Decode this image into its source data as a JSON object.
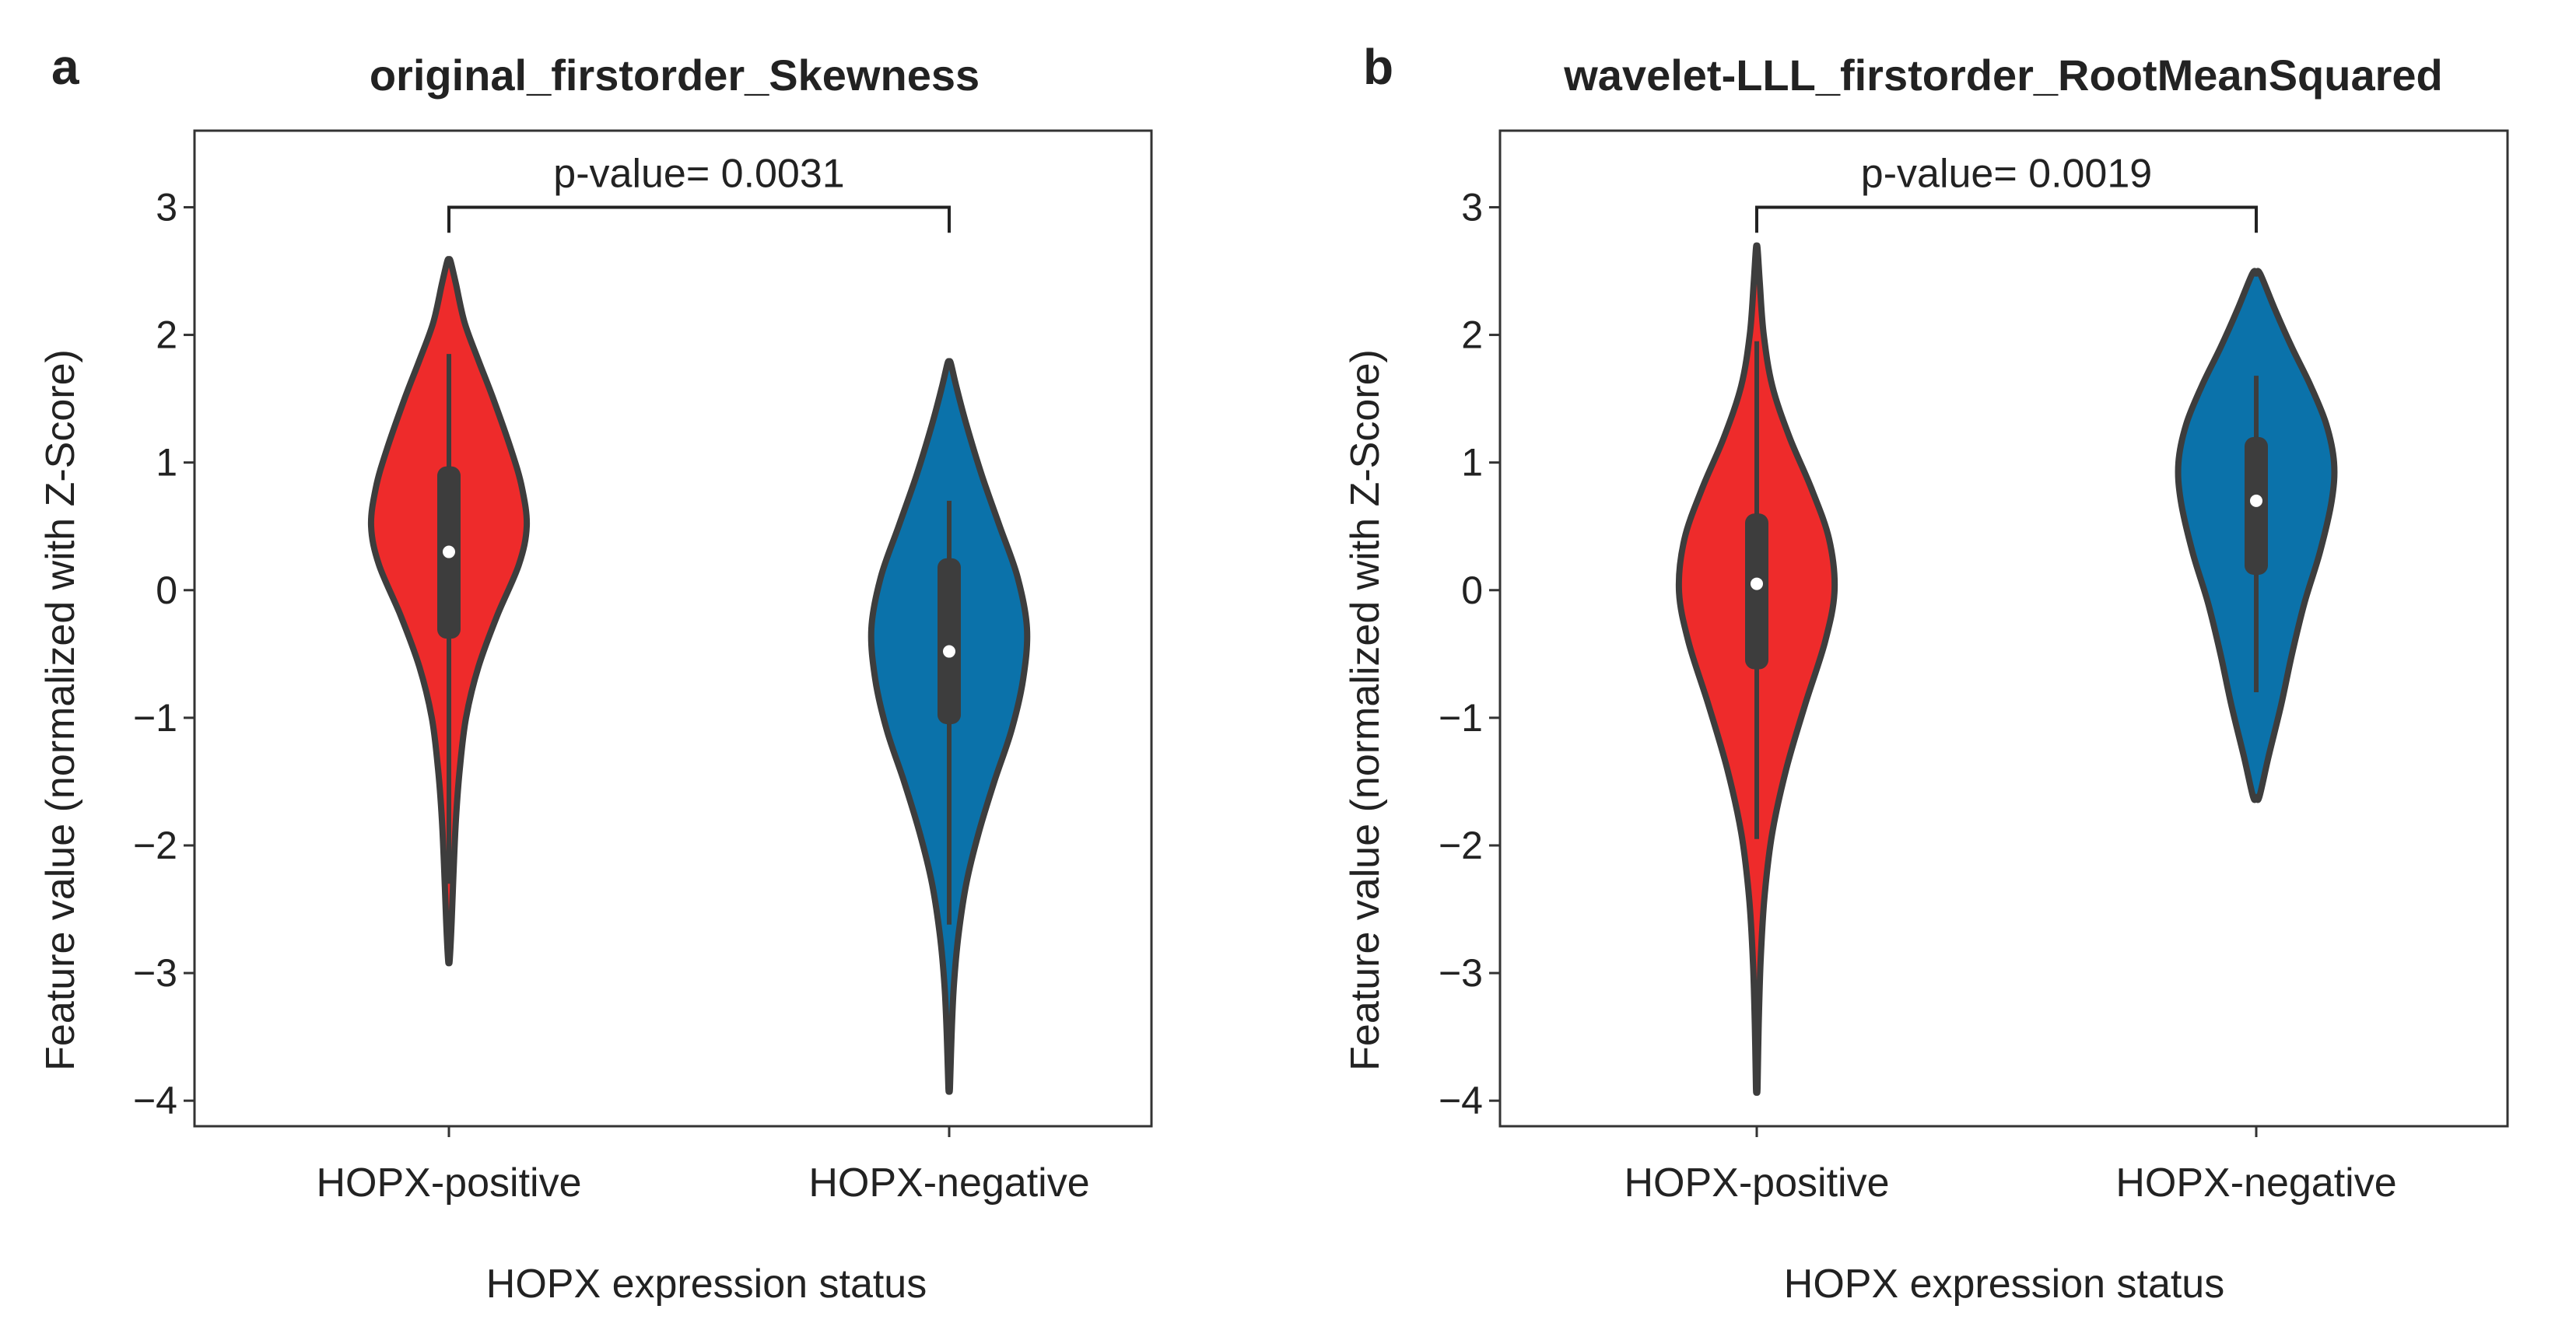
{
  "chart_data": [
    {
      "type": "violin",
      "panel": "a",
      "title": "original_firstorder_Skewness",
      "xlabel": "HOPX expression status",
      "ylabel": "Feature value (normalized with Z-Score)",
      "ylim": [
        -4.2,
        3.6
      ],
      "yticks": [
        3,
        2,
        1,
        0,
        -1,
        -2,
        -3,
        -4
      ],
      "ytick_labels": [
        "3",
        "2",
        "1",
        "0",
        "−1",
        "−2",
        "−3",
        "−4"
      ],
      "categories": [
        "HOPX-positive",
        "HOPX-negative"
      ],
      "annotation": {
        "text": "p-value= 0.0031",
        "bracket_y": 3.0,
        "bracket_drop": 0.2
      },
      "violins": [
        {
          "name": "HOPX-positive",
          "color": "#ee2b2b",
          "min": -2.9,
          "max": 2.58,
          "median": 0.3,
          "q1": -0.38,
          "q3": 0.97,
          "whisker_low": -2.3,
          "whisker_high": 1.85,
          "profile": [
            [
              -2.9,
              0.01
            ],
            [
              -2.6,
              0.035
            ],
            [
              -2.2,
              0.06
            ],
            [
              -1.8,
              0.09
            ],
            [
              -1.4,
              0.14
            ],
            [
              -1.0,
              0.22
            ],
            [
              -0.6,
              0.38
            ],
            [
              -0.2,
              0.62
            ],
            [
              0.2,
              0.9
            ],
            [
              0.5,
              1.0
            ],
            [
              0.8,
              0.94
            ],
            [
              1.1,
              0.8
            ],
            [
              1.5,
              0.57
            ],
            [
              1.8,
              0.38
            ],
            [
              2.1,
              0.2
            ],
            [
              2.4,
              0.09
            ],
            [
              2.58,
              0.02
            ]
          ]
        },
        {
          "name": "HOPX-negative",
          "color": "#0b72aa",
          "min": -3.9,
          "max": 1.78,
          "median": -0.48,
          "q1": -1.05,
          "q3": 0.25,
          "whisker_low": -2.62,
          "whisker_high": 0.7,
          "profile": [
            [
              -3.9,
              0.01
            ],
            [
              -3.5,
              0.03
            ],
            [
              -3.1,
              0.06
            ],
            [
              -2.7,
              0.12
            ],
            [
              -2.3,
              0.22
            ],
            [
              -1.9,
              0.38
            ],
            [
              -1.5,
              0.58
            ],
            [
              -1.1,
              0.8
            ],
            [
              -0.7,
              0.95
            ],
            [
              -0.3,
              1.0
            ],
            [
              0.1,
              0.88
            ],
            [
              0.5,
              0.65
            ],
            [
              0.9,
              0.42
            ],
            [
              1.3,
              0.22
            ],
            [
              1.6,
              0.09
            ],
            [
              1.78,
              0.02
            ]
          ]
        }
      ]
    },
    {
      "type": "violin",
      "panel": "b",
      "title": "wavelet-LLL_firstorder_RootMeanSquared",
      "xlabel": "HOPX expression status",
      "ylabel": "Feature value (normalized with Z-Score)",
      "ylim": [
        -4.2,
        3.6
      ],
      "yticks": [
        3,
        2,
        1,
        0,
        -1,
        -2,
        -3,
        -4
      ],
      "ytick_labels": [
        "3",
        "2",
        "1",
        "0",
        "−1",
        "−2",
        "−3",
        "−4"
      ],
      "categories": [
        "HOPX-positive",
        "HOPX-negative"
      ],
      "annotation": {
        "text": "p-value= 0.0019",
        "bracket_y": 3.0,
        "bracket_drop": 0.2
      },
      "violins": [
        {
          "name": "HOPX-positive",
          "color": "#ee2b2b",
          "min": -3.9,
          "max": 2.68,
          "median": 0.05,
          "q1": -0.62,
          "q3": 0.6,
          "whisker_low": -1.95,
          "whisker_high": 1.95,
          "profile": [
            [
              -3.9,
              0.01
            ],
            [
              -3.4,
              0.025
            ],
            [
              -2.9,
              0.05
            ],
            [
              -2.4,
              0.1
            ],
            [
              -1.9,
              0.2
            ],
            [
              -1.4,
              0.38
            ],
            [
              -0.9,
              0.62
            ],
            [
              -0.4,
              0.88
            ],
            [
              0.0,
              1.0
            ],
            [
              0.4,
              0.93
            ],
            [
              0.8,
              0.7
            ],
            [
              1.2,
              0.42
            ],
            [
              1.6,
              0.2
            ],
            [
              2.0,
              0.09
            ],
            [
              2.4,
              0.04
            ],
            [
              2.68,
              0.01
            ]
          ]
        },
        {
          "name": "HOPX-negative",
          "color": "#0b72aa",
          "min": -1.62,
          "max": 2.48,
          "median": 0.7,
          "q1": 0.12,
          "q3": 1.2,
          "whisker_low": -0.8,
          "whisker_high": 1.68,
          "profile": [
            [
              -1.62,
              0.04
            ],
            [
              -1.3,
              0.16
            ],
            [
              -0.9,
              0.32
            ],
            [
              -0.5,
              0.46
            ],
            [
              -0.1,
              0.62
            ],
            [
              0.3,
              0.82
            ],
            [
              0.7,
              0.97
            ],
            [
              1.0,
              1.0
            ],
            [
              1.3,
              0.9
            ],
            [
              1.6,
              0.7
            ],
            [
              1.9,
              0.46
            ],
            [
              2.2,
              0.24
            ],
            [
              2.48,
              0.05
            ]
          ]
        }
      ]
    }
  ]
}
